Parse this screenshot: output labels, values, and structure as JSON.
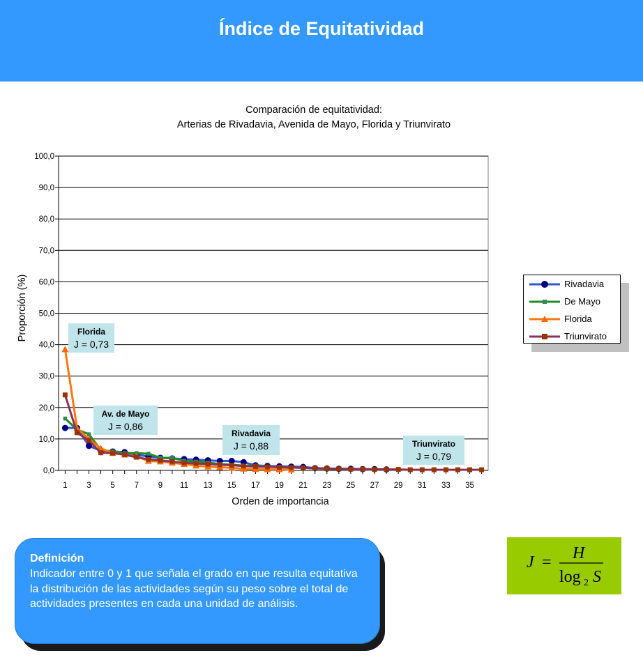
{
  "header": {
    "title": "Índice de Equitatividad"
  },
  "chart_data": {
    "type": "line",
    "title_lines": [
      "Comparación de equitatividad:",
      "Arterias de Rivadavia, Avenida de Mayo, Florida y Triunvirato"
    ],
    "xlabel": "Orden de importancia",
    "ylabel": "Proporción (%)",
    "ylim": [
      0,
      100
    ],
    "y_ticks": [
      "0,0",
      "10,0",
      "20,0",
      "30,0",
      "40,0",
      "50,0",
      "60,0",
      "70,0",
      "80,0",
      "90,0",
      "100,0"
    ],
    "x_ticks": [
      "1",
      "3",
      "5",
      "7",
      "9",
      "11",
      "13",
      "15",
      "17",
      "19",
      "21",
      "23",
      "25",
      "27",
      "29",
      "31",
      "33",
      "35"
    ],
    "x_range": [
      1,
      36
    ],
    "grid": "horizontal",
    "legend_position": "right",
    "series": [
      {
        "name": "Rivadavia",
        "color": "#3355cc",
        "marker": "circle",
        "marker_color": "#000080",
        "x": [
          1,
          2,
          3,
          4,
          5,
          6,
          7,
          8,
          9,
          10,
          11,
          12,
          13,
          14,
          15,
          16,
          17,
          18,
          19,
          20,
          21,
          22,
          23,
          24,
          25,
          26,
          27,
          28
        ],
        "y": [
          13.5,
          13.5,
          7.8,
          6.2,
          6.0,
          5.8,
          5.0,
          4.4,
          4.0,
          3.8,
          3.6,
          3.4,
          3.2,
          3.0,
          3.0,
          2.6,
          1.6,
          1.4,
          1.3,
          1.2,
          1.1,
          0.7,
          0.6,
          0.5,
          0.5,
          0.4,
          0.4,
          0.3
        ]
      },
      {
        "name": "De Mayo",
        "color": "#228b22",
        "marker": "square",
        "marker_color": "#2e8b57",
        "x": [
          1,
          2,
          3,
          4,
          5,
          6,
          7,
          8,
          9,
          10,
          11,
          12,
          13,
          14,
          15,
          16,
          17,
          18,
          19,
          20,
          21,
          22,
          23,
          24,
          25,
          26,
          27,
          28
        ],
        "y": [
          16.5,
          13.0,
          11.5,
          6.5,
          6.0,
          5.5,
          5.5,
          5.3,
          4.0,
          4.0,
          3.0,
          2.8,
          2.5,
          2.0,
          1.8,
          1.5,
          1.5,
          1.2,
          1.0,
          0.9,
          0.8,
          0.6,
          0.5,
          0.4,
          0.3,
          0.3,
          0.2,
          0.2
        ]
      },
      {
        "name": "Florida",
        "color": "#ff7711",
        "marker": "triangle",
        "marker_color": "#ff6600",
        "x": [
          1,
          2,
          3,
          4,
          5,
          6,
          7,
          8,
          9,
          10,
          11,
          12,
          13,
          14,
          15,
          16,
          17,
          18,
          19,
          20
        ],
        "y": [
          38.5,
          13.5,
          10.0,
          7.0,
          5.5,
          5.0,
          4.5,
          3.0,
          2.8,
          2.4,
          2.0,
          1.5,
          1.2,
          1.0,
          0.8,
          0.5,
          0.4,
          0.3,
          0.3,
          0.2
        ]
      },
      {
        "name": "Triunvirato",
        "color": "#883355",
        "marker": "square",
        "marker_color": "#993300",
        "x": [
          1,
          2,
          3,
          4,
          5,
          6,
          7,
          8,
          9,
          10,
          11,
          12,
          13,
          14,
          15,
          16,
          17,
          18,
          19,
          20,
          21,
          22,
          23,
          24,
          25,
          26,
          27,
          28,
          29,
          30,
          31,
          32,
          33,
          34,
          35,
          36
        ],
        "y": [
          24.0,
          12.0,
          9.5,
          5.6,
          5.5,
          5.0,
          4.2,
          3.5,
          3.2,
          2.8,
          2.4,
          2.2,
          2.0,
          1.8,
          1.6,
          1.4,
          1.2,
          1.1,
          1.0,
          0.9,
          0.8,
          0.7,
          0.6,
          0.5,
          0.4,
          0.4,
          0.3,
          0.3,
          0.3,
          0.2,
          0.2,
          0.2,
          0.2,
          0.2,
          0.2,
          0.2
        ]
      }
    ],
    "annotations": [
      {
        "name": "Florida",
        "value": "J = 0,73"
      },
      {
        "name": "Av. de Mayo",
        "value": "J = 0,86"
      },
      {
        "name": "Rivadavia",
        "value": "J = 0,88"
      },
      {
        "name": "Triunvirato",
        "value": "J = 0,79"
      }
    ],
    "annotation_bg": "#bfe4ea"
  },
  "definition": {
    "title": "Definición",
    "text": "Indicador entre 0 y 1 que señala el grado en que resulta equitativa la distribución de las actividades según su peso sobre el total de actividades presentes en cada una unidad de análisis."
  },
  "formula": {
    "lhs": "J",
    "eq": "=",
    "numerator": "H",
    "denominator_log": "log",
    "denominator_base": "2",
    "denominator_var": "S"
  },
  "colors": {
    "header_bg": "#3399ff",
    "definition_bg": "#3399ff",
    "formula_bg": "#99cc00"
  }
}
